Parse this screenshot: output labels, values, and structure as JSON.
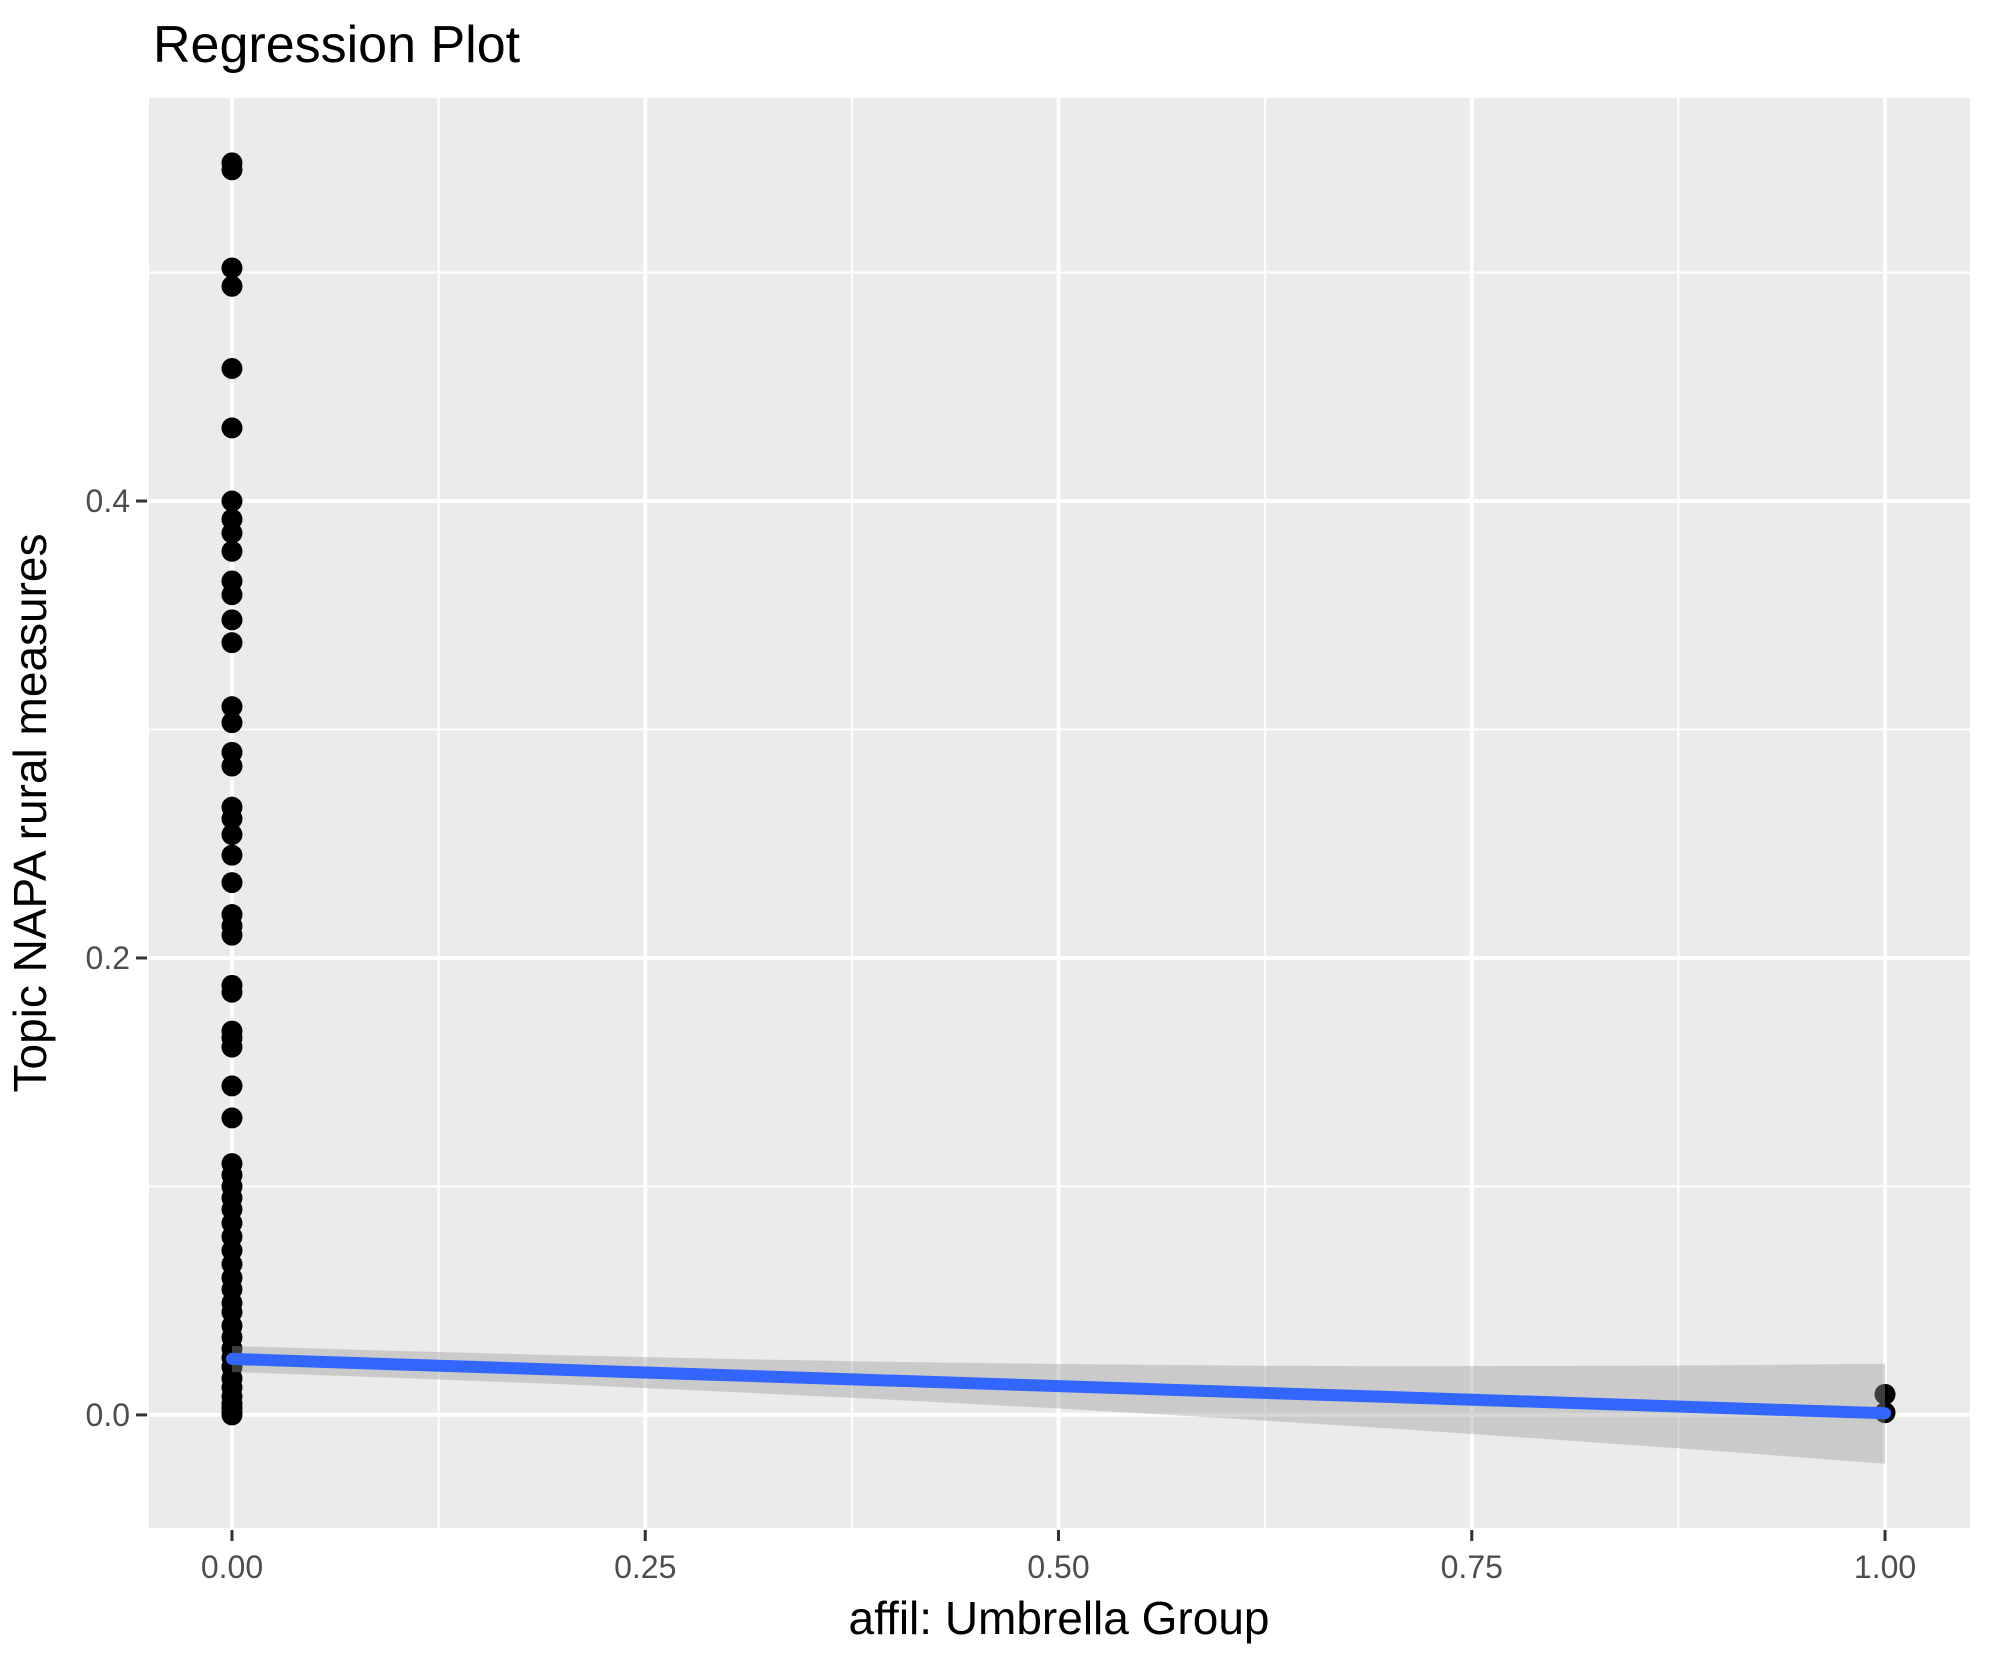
{
  "chart_data": {
    "type": "scatter",
    "title": "Regression Plot",
    "xlabel": "affil: Umbrella Group",
    "ylabel": "Topic NAPA rural measures",
    "xlim": [
      -0.0502,
      1.0514
    ],
    "ylim": [
      -0.0495,
      0.5764
    ],
    "grid": true,
    "legend": false,
    "xticks": {
      "values": [
        0,
        0.25,
        0.5,
        0.75,
        1.0
      ],
      "labels": [
        "0.00",
        "0.25",
        "0.50",
        "0.75",
        "1.00"
      ]
    },
    "yticks": {
      "values": [
        0,
        0.2,
        0.4
      ],
      "labels": [
        "0.0",
        "0.2",
        "0.4"
      ]
    },
    "minor_xticks": [
      0.125,
      0.375,
      0.625,
      0.875
    ],
    "minor_yticks": [
      0.1,
      0.3,
      0.5
    ],
    "points": [
      {
        "x": 0,
        "y": [
          0.548,
          0.545,
          0.502,
          0.494,
          0.458,
          0.432,
          0.4,
          0.392,
          0.386,
          0.378,
          0.365,
          0.359,
          0.348,
          0.338,
          0.31,
          0.303,
          0.29,
          0.284,
          0.266,
          0.261,
          0.254,
          0.245,
          0.233,
          0.219,
          0.214,
          0.21,
          0.188,
          0.185,
          0.168,
          0.165,
          0.161,
          0.144,
          0.13,
          0.11,
          0.105,
          0.1,
          0.095,
          0.09,
          0.084,
          0.078,
          0.072,
          0.066,
          0.06,
          0.055,
          0.049,
          0.045,
          0.039,
          0.034,
          0.029,
          0.025,
          0.021,
          0.016,
          0.012,
          0.008,
          0.005,
          0.003,
          0.001,
          0.0
        ]
      },
      {
        "x": 1,
        "y": [
          0.009,
          0.001
        ]
      }
    ],
    "regression_line": {
      "x": [
        0,
        1
      ],
      "y": [
        0.0245,
        0.0007
      ]
    },
    "confidence_band": {
      "x": [
        0,
        0.1,
        0.2,
        0.3,
        0.4,
        0.5,
        0.6,
        0.7,
        0.8,
        0.9,
        1.0
      ],
      "upper": [
        0.0302,
        0.028,
        0.0261,
        0.0245,
        0.0232,
        0.0223,
        0.0216,
        0.0213,
        0.0214,
        0.0217,
        0.0224
      ],
      "lower": [
        0.0188,
        0.0162,
        0.0134,
        0.0101,
        0.0066,
        0.0028,
        -0.0014,
        -0.0059,
        -0.0108,
        -0.0159,
        -0.0214
      ]
    },
    "colors": {
      "point": "#000000",
      "line": "#3366FF",
      "band": "rgba(153,153,153,0.40)",
      "panel_bg": "#EBEBEB",
      "grid": "#FFFFFF",
      "tick_text": "#4D4D4D",
      "tick_mark": "#333333",
      "title_text": "#000000"
    }
  }
}
